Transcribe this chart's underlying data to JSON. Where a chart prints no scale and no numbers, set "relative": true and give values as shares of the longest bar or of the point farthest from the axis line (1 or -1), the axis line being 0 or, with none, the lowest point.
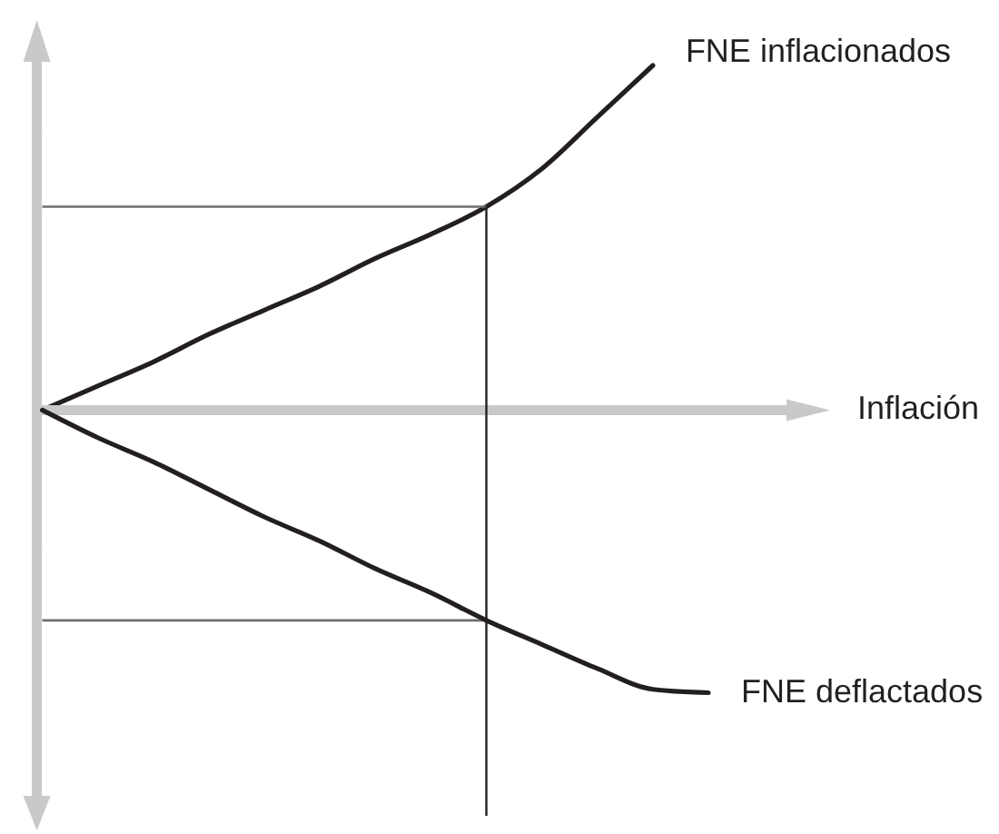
{
  "chart_data": {
    "type": "line",
    "relative": true,
    "xlabel": "Inflación",
    "categories": [
      null,
      null,
      null,
      null,
      null,
      null,
      null,
      null,
      null,
      null,
      null,
      null,
      null
    ],
    "series": [
      {
        "name": "FNE inflacionados",
        "color": "#231f20",
        "values": [
          0,
          0.07,
          0.14,
          0.22,
          0.29,
          0.36,
          0.44,
          0.51,
          0.59,
          0.7,
          0.85,
          1.0,
          null
        ]
      },
      {
        "name": "FNE deflactados",
        "color": "#231f20",
        "values": [
          0,
          -0.08,
          -0.15,
          -0.23,
          -0.31,
          -0.38,
          -0.46,
          -0.53,
          -0.61,
          -0.68,
          -0.75,
          -0.81,
          -0.82
        ]
      }
    ],
    "ref_lines": [
      {
        "axis": "y",
        "value": 0.59,
        "color": "#6d6e71"
      },
      {
        "axis": "y",
        "value": -0.61,
        "color": "#6d6e71"
      }
    ]
  }
}
